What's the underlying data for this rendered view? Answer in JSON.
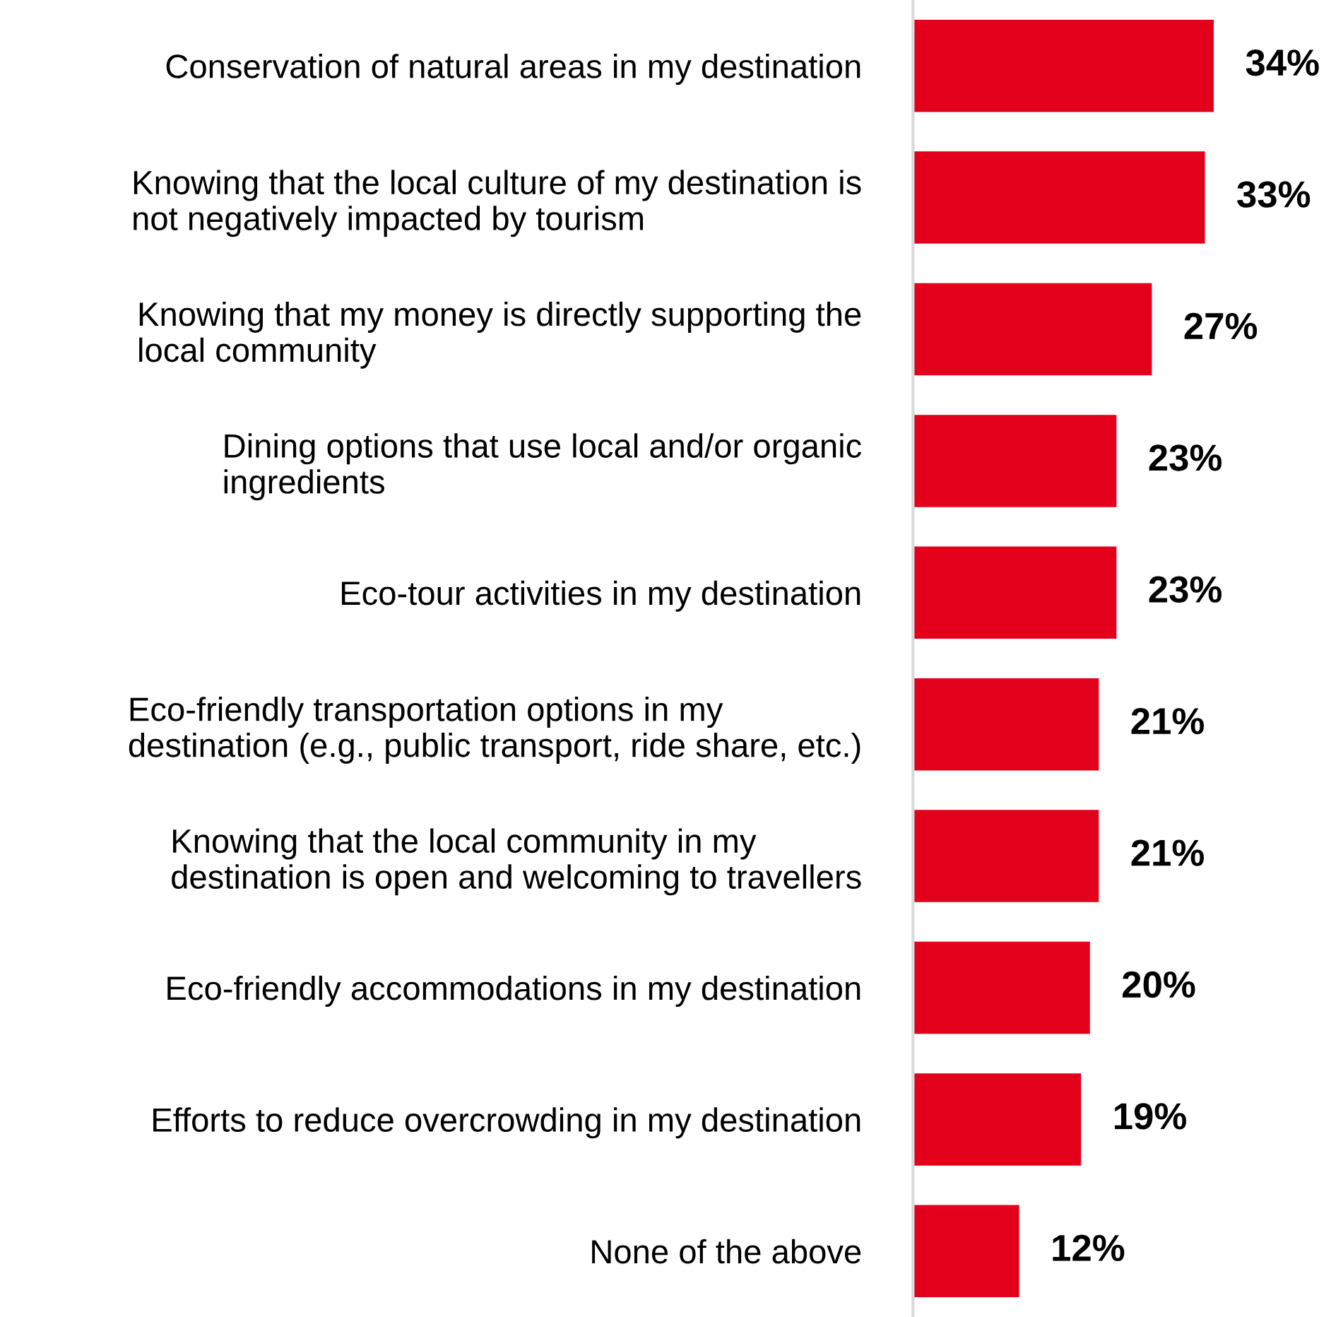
{
  "chart_data": {
    "type": "bar",
    "orientation": "horizontal",
    "color": "#e2001a",
    "categories": [
      "Conservation of natural areas in my destination",
      "Knowing that the local culture of my destination is\nnot negatively impacted by tourism",
      "Knowing that my money is directly supporting the\nlocal community",
      "Dining options that use local and/or organic\ningredients",
      "Eco-tour activities in my destination",
      "Eco-friendly transportation options in my\ndestination (e.g., public transport, ride share, etc.)",
      "Knowing that the local community in my\ndestination is open and welcoming to travellers",
      "Eco-friendly accommodations in my destination",
      "Efforts to reduce overcrowding in my destination",
      "None of the above"
    ],
    "values": [
      34,
      33,
      27,
      23,
      23,
      21,
      21,
      20,
      19,
      12
    ],
    "value_labels": [
      "34%",
      "33%",
      "27%",
      "23%",
      "23%",
      "21%",
      "21%",
      "20%",
      "19%",
      "12%"
    ],
    "grid": false,
    "legend": false
  }
}
